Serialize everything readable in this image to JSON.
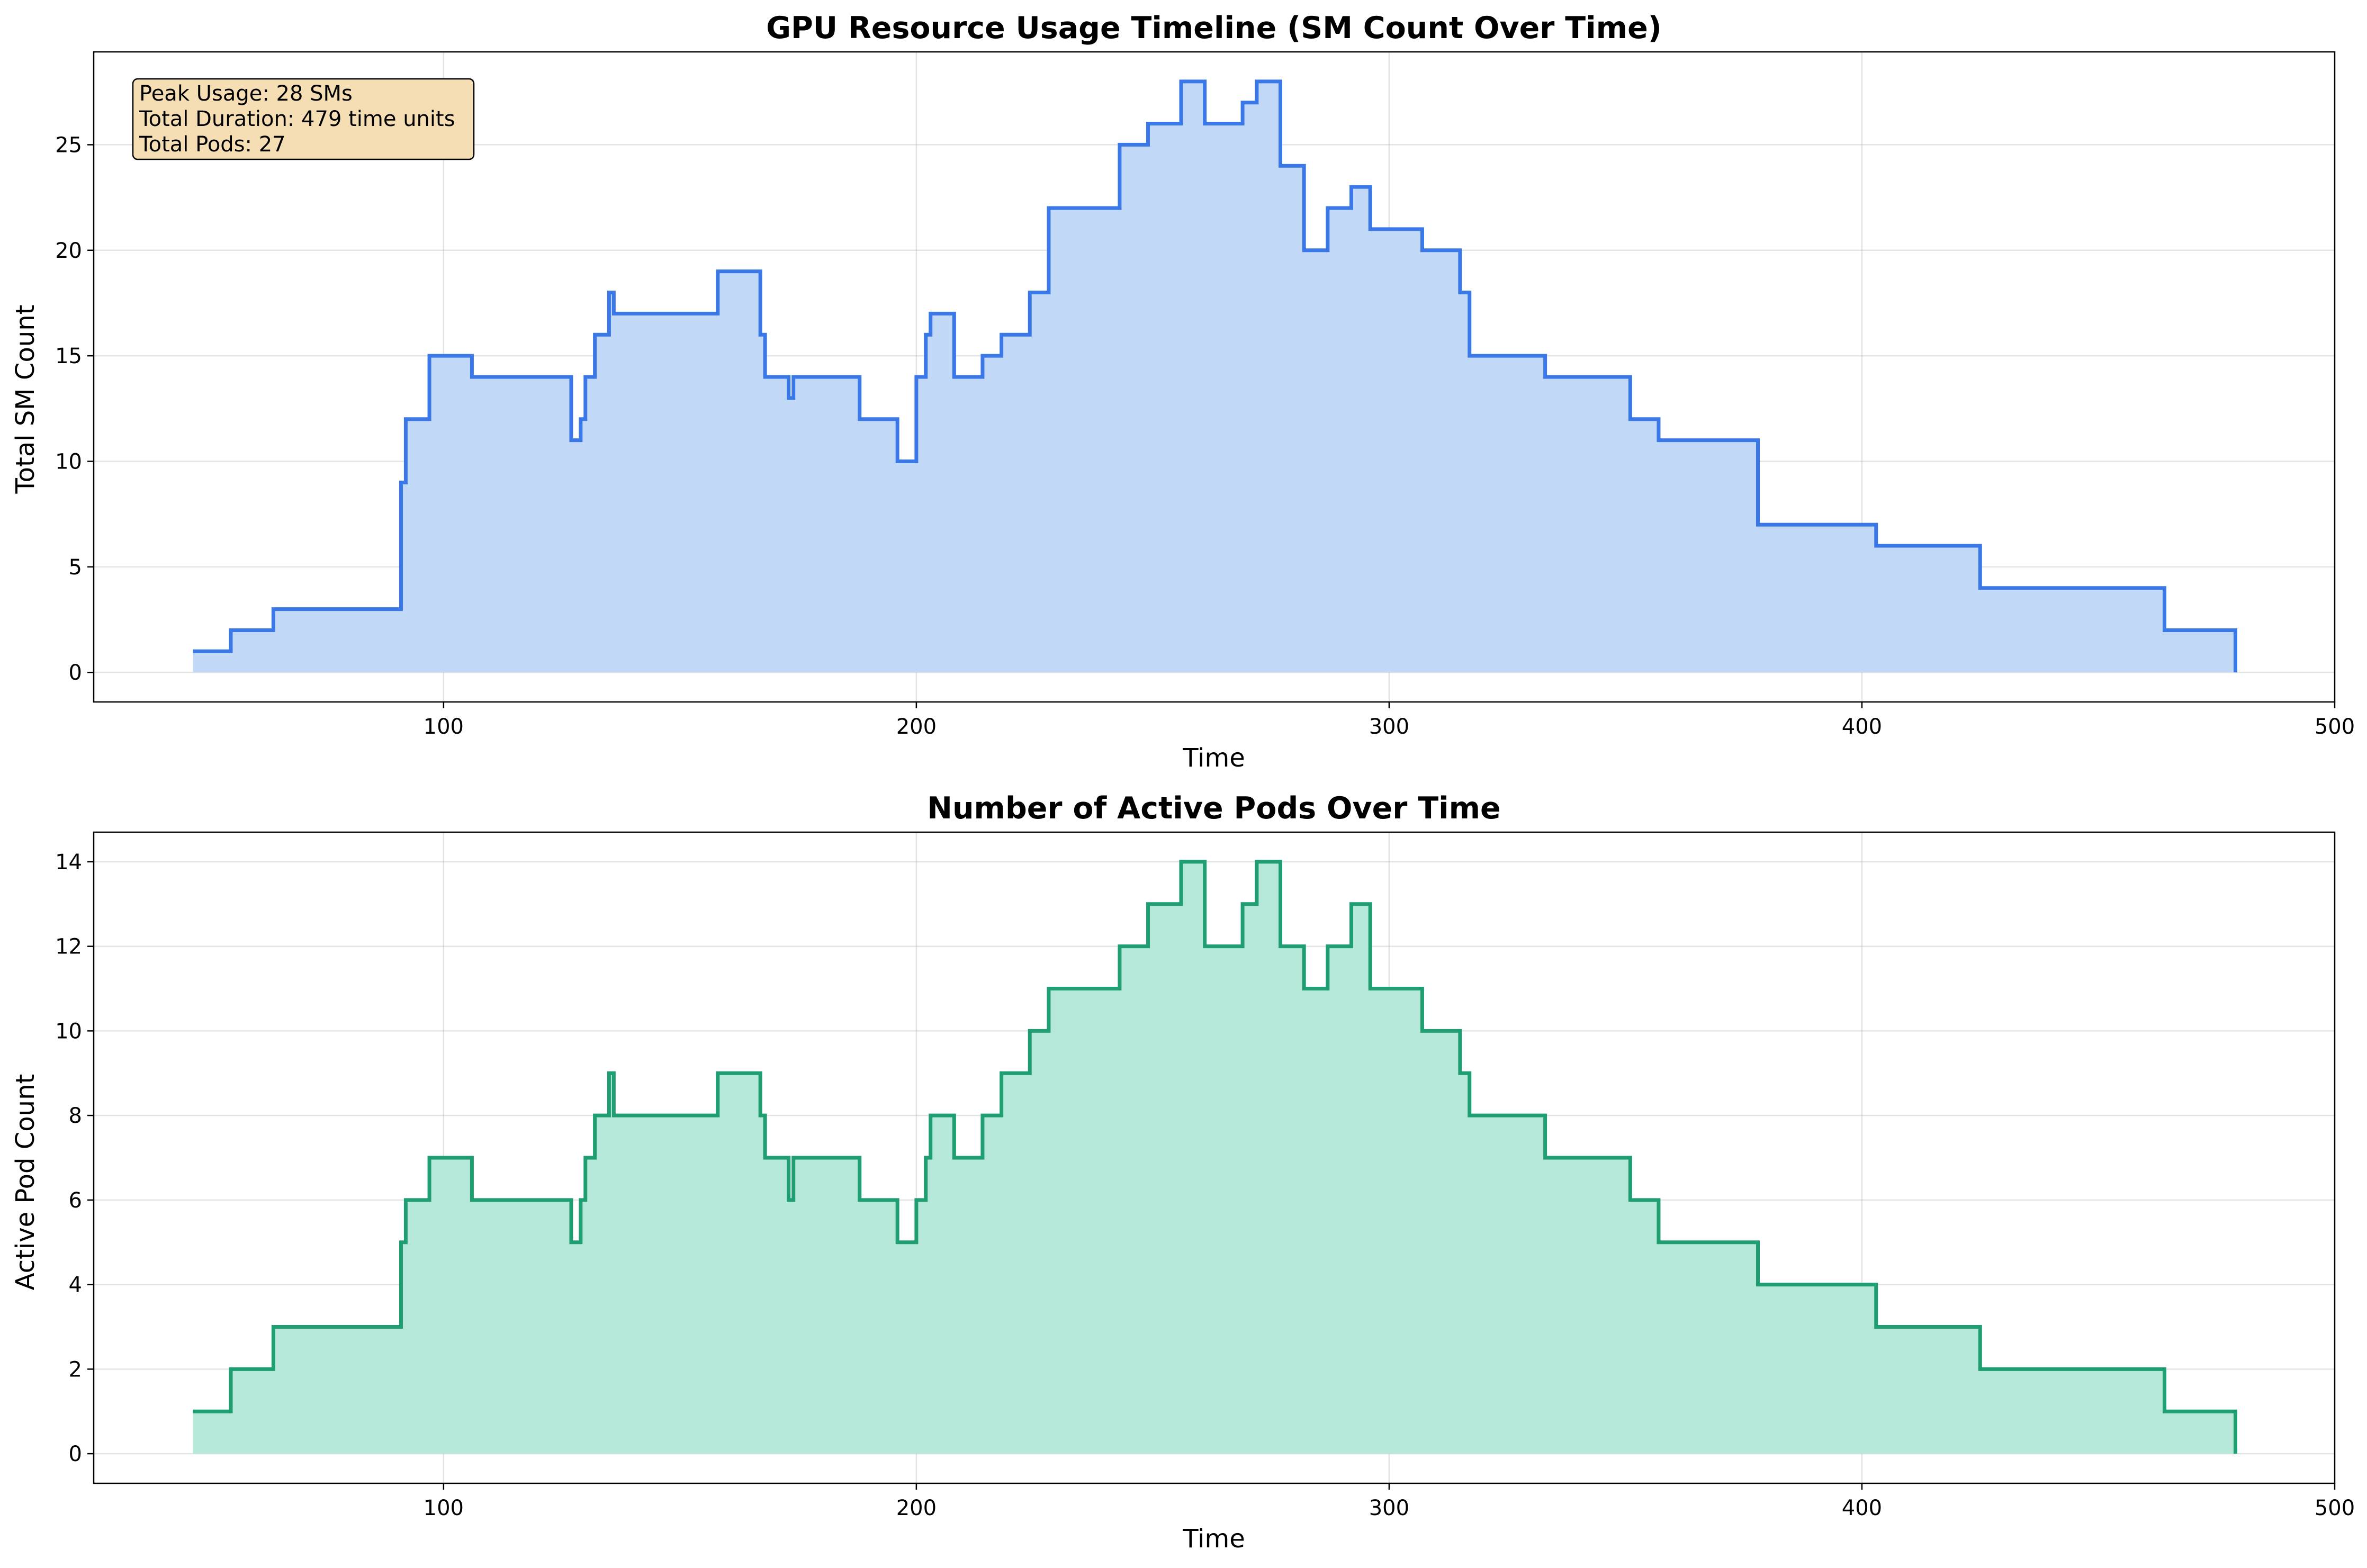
{
  "chart_data": [
    {
      "type": "area",
      "step": "post",
      "title": "GPU Resource Usage Timeline (SM Count Over Time)",
      "xlabel": "Time",
      "ylabel": "Total SM Count",
      "xlim": [
        26,
        500
      ],
      "ylim": [
        -1.4,
        29.4
      ],
      "xticks": [
        100,
        200,
        300,
        400,
        500
      ],
      "yticks": [
        0,
        5,
        10,
        15,
        20,
        25
      ],
      "grid": true,
      "color": "#3b78e7",
      "fill_color": "#c2d8f7",
      "annotation": {
        "lines": [
          "Peak Usage: 28 SMs",
          "Total Duration: 479 time units",
          "Total Pods: 27"
        ],
        "position": "top-left",
        "background": "#f5deb3"
      },
      "series": [
        {
          "x": [
            47,
            55,
            64,
            91,
            92,
            97,
            106,
            127,
            129,
            130,
            132,
            135,
            136,
            137,
            158,
            167,
            168,
            173,
            174,
            188,
            196,
            200,
            202,
            203,
            208,
            214,
            218,
            224,
            228,
            243,
            249,
            256,
            261,
            269,
            272,
            277,
            282,
            287,
            292,
            296,
            307,
            315,
            317,
            333,
            351,
            357,
            378,
            403,
            425,
            464,
            479
          ],
          "y": [
            1,
            2,
            3,
            9,
            12,
            15,
            14,
            11,
            12,
            14,
            16,
            18,
            17,
            17,
            19,
            16,
            14,
            13,
            14,
            12,
            10,
            14,
            16,
            17,
            14,
            15,
            16,
            18,
            22,
            25,
            26,
            28,
            26,
            27,
            28,
            24,
            20,
            22,
            23,
            21,
            20,
            18,
            15,
            14,
            12,
            11,
            7,
            6,
            4,
            2,
            0
          ]
        }
      ]
    },
    {
      "type": "area",
      "step": "post",
      "title": "Number of Active Pods Over Time",
      "xlabel": "Time",
      "ylabel": "Active Pod Count",
      "xlim": [
        26,
        500
      ],
      "ylim": [
        -0.7,
        14.7
      ],
      "xticks": [
        100,
        200,
        300,
        400,
        500
      ],
      "yticks": [
        0,
        2,
        4,
        6,
        8,
        10,
        12,
        14
      ],
      "grid": true,
      "color": "#1f9e72",
      "fill_color": "#b5e8d8",
      "series": [
        {
          "x": [
            47,
            55,
            64,
            91,
            92,
            97,
            106,
            127,
            129,
            130,
            132,
            135,
            136,
            137,
            158,
            167,
            168,
            173,
            174,
            188,
            196,
            200,
            202,
            203,
            208,
            214,
            218,
            224,
            228,
            243,
            249,
            256,
            261,
            269,
            272,
            277,
            282,
            287,
            292,
            296,
            307,
            315,
            317,
            333,
            351,
            357,
            378,
            403,
            425,
            464,
            479
          ],
          "y": [
            1,
            2,
            3,
            5,
            6,
            7,
            6,
            5,
            6,
            7,
            8,
            9,
            8,
            8,
            9,
            8,
            7,
            6,
            7,
            6,
            5,
            6,
            7,
            8,
            7,
            8,
            9,
            10,
            11,
            12,
            13,
            14,
            12,
            13,
            14,
            12,
            11,
            12,
            13,
            11,
            10,
            9,
            8,
            7,
            6,
            5,
            4,
            3,
            2,
            1,
            0
          ]
        }
      ]
    }
  ]
}
